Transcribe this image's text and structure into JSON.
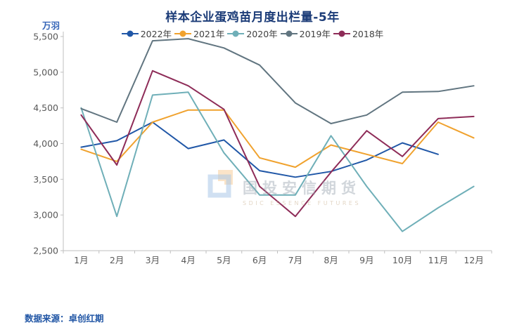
{
  "title": "样本企业蛋鸡苗月度出栏量-5年",
  "unit": "万羽",
  "footer": {
    "label": "数据来源：卓创红期"
  },
  "watermark": {
    "text": "国投安信期货",
    "subtext": "SDIC ESSENCE FUTURES"
  },
  "colors": {
    "title": "#1C3C78",
    "unit_label": "#3565B8",
    "footer": "#2156A5",
    "axis_text": "#595959",
    "axis_line": "#BFBFBF",
    "legend_text": "#404040"
  },
  "chart_data": {
    "type": "line",
    "categories": [
      "1月",
      "2月",
      "3月",
      "4月",
      "5月",
      "6月",
      "7月",
      "8月",
      "9月",
      "10月",
      "11月",
      "12月"
    ],
    "series": [
      {
        "name": "2022年",
        "color": "#2057A7",
        "values": [
          3950,
          4040,
          4300,
          3930,
          4050,
          3620,
          3530,
          3610,
          3770,
          4010,
          3850,
          null
        ]
      },
      {
        "name": "2021年",
        "color": "#F0A22E",
        "values": [
          3920,
          3750,
          4300,
          4470,
          4470,
          3800,
          3670,
          3980,
          3850,
          3720,
          4300,
          4080
        ]
      },
      {
        "name": "2020年",
        "color": "#6FAFB8",
        "values": [
          4500,
          2980,
          4680,
          4720,
          3870,
          3280,
          3280,
          4110,
          3400,
          2770,
          3100,
          3400
        ]
      },
      {
        "name": "2019年",
        "color": "#617580",
        "values": [
          4490,
          4300,
          5440,
          5470,
          5340,
          5100,
          4570,
          4280,
          4400,
          4720,
          4730,
          4810
        ]
      },
      {
        "name": "2018年",
        "color": "#8E2C58",
        "values": [
          4400,
          3700,
          5020,
          4810,
          4480,
          3400,
          2980,
          3600,
          4180,
          3820,
          4350,
          4380
        ]
      }
    ],
    "ylabel_ticks": [
      "5,500",
      "5,000",
      "4,500",
      "4,000",
      "3,500",
      "3,000",
      "2,500"
    ],
    "ylim": [
      2500,
      5500
    ],
    "y_step": 500,
    "grid": false,
    "legend_position": "top"
  }
}
